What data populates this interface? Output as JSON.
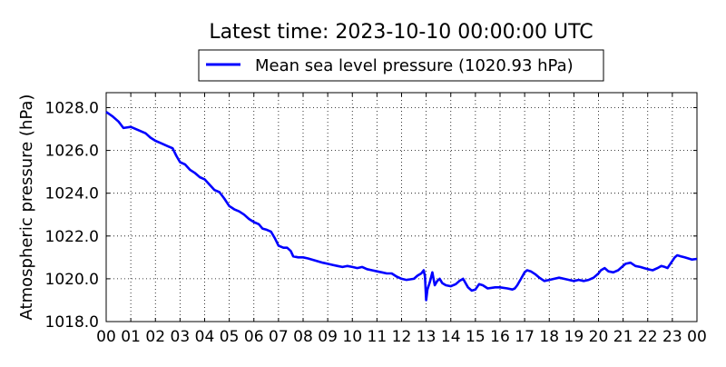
{
  "chart_data": {
    "type": "line",
    "title": "Latest time: 2023-10-10 00:00:00 UTC",
    "xlabel": "",
    "ylabel": "Atmospheric pressure (hPa)",
    "x_tick_labels": [
      "00",
      "01",
      "02",
      "03",
      "04",
      "05",
      "06",
      "07",
      "08",
      "09",
      "10",
      "11",
      "12",
      "13",
      "14",
      "15",
      "16",
      "17",
      "18",
      "19",
      "20",
      "21",
      "22",
      "23",
      "00"
    ],
    "y_tick_labels": [
      "1018.0",
      "1020.0",
      "1022.0",
      "1024.0",
      "1026.0",
      "1028.0"
    ],
    "y_ticks": [
      1018,
      1020,
      1022,
      1024,
      1026,
      1028
    ],
    "xlim": [
      0,
      24
    ],
    "ylim": [
      1018,
      1028.7
    ],
    "grid": true,
    "legend_position": "top-center",
    "series": [
      {
        "name": "Mean sea level pressure (1020.93 hPa)",
        "color": "#0000ff",
        "points": [
          [
            0.0,
            1027.8
          ],
          [
            0.25,
            1027.6
          ],
          [
            0.5,
            1027.35
          ],
          [
            0.7,
            1027.05
          ],
          [
            1.0,
            1027.1
          ],
          [
            1.3,
            1026.95
          ],
          [
            1.6,
            1026.8
          ],
          [
            1.8,
            1026.6
          ],
          [
            2.0,
            1026.45
          ],
          [
            2.2,
            1026.35
          ],
          [
            2.5,
            1026.2
          ],
          [
            2.7,
            1026.1
          ],
          [
            2.85,
            1025.75
          ],
          [
            3.0,
            1025.45
          ],
          [
            3.2,
            1025.35
          ],
          [
            3.4,
            1025.1
          ],
          [
            3.6,
            1024.95
          ],
          [
            3.8,
            1024.75
          ],
          [
            4.0,
            1024.65
          ],
          [
            4.2,
            1024.4
          ],
          [
            4.4,
            1024.15
          ],
          [
            4.6,
            1024.05
          ],
          [
            4.8,
            1023.75
          ],
          [
            5.0,
            1023.4
          ],
          [
            5.2,
            1023.25
          ],
          [
            5.4,
            1023.15
          ],
          [
            5.6,
            1023.0
          ],
          [
            5.8,
            1022.8
          ],
          [
            6.0,
            1022.65
          ],
          [
            6.2,
            1022.55
          ],
          [
            6.35,
            1022.35
          ],
          [
            6.5,
            1022.3
          ],
          [
            6.7,
            1022.2
          ],
          [
            6.85,
            1021.9
          ],
          [
            7.0,
            1021.55
          ],
          [
            7.2,
            1021.45
          ],
          [
            7.35,
            1021.45
          ],
          [
            7.5,
            1021.3
          ],
          [
            7.6,
            1021.05
          ],
          [
            7.8,
            1021.0
          ],
          [
            8.0,
            1021.0
          ],
          [
            8.2,
            1020.95
          ],
          [
            8.5,
            1020.85
          ],
          [
            8.8,
            1020.75
          ],
          [
            9.0,
            1020.7
          ],
          [
            9.2,
            1020.65
          ],
          [
            9.4,
            1020.6
          ],
          [
            9.6,
            1020.55
          ],
          [
            9.8,
            1020.6
          ],
          [
            10.0,
            1020.55
          ],
          [
            10.2,
            1020.5
          ],
          [
            10.4,
            1020.55
          ],
          [
            10.6,
            1020.45
          ],
          [
            10.8,
            1020.4
          ],
          [
            11.0,
            1020.35
          ],
          [
            11.2,
            1020.3
          ],
          [
            11.4,
            1020.25
          ],
          [
            11.6,
            1020.25
          ],
          [
            11.8,
            1020.1
          ],
          [
            12.0,
            1020.0
          ],
          [
            12.2,
            1019.95
          ],
          [
            12.5,
            1020.0
          ],
          [
            12.65,
            1020.15
          ],
          [
            12.8,
            1020.25
          ],
          [
            12.9,
            1020.4
          ],
          [
            12.95,
            1020.1
          ],
          [
            13.0,
            1019.0
          ],
          [
            13.05,
            1019.5
          ],
          [
            13.15,
            1019.85
          ],
          [
            13.25,
            1020.3
          ],
          [
            13.35,
            1019.7
          ],
          [
            13.45,
            1019.9
          ],
          [
            13.55,
            1020.0
          ],
          [
            13.65,
            1019.8
          ],
          [
            13.8,
            1019.7
          ],
          [
            14.0,
            1019.65
          ],
          [
            14.2,
            1019.75
          ],
          [
            14.35,
            1019.9
          ],
          [
            14.5,
            1020.0
          ],
          [
            14.6,
            1019.8
          ],
          [
            14.7,
            1019.6
          ],
          [
            14.85,
            1019.45
          ],
          [
            15.0,
            1019.5
          ],
          [
            15.15,
            1019.75
          ],
          [
            15.3,
            1019.7
          ],
          [
            15.5,
            1019.55
          ],
          [
            15.8,
            1019.6
          ],
          [
            16.0,
            1019.6
          ],
          [
            16.3,
            1019.55
          ],
          [
            16.5,
            1019.5
          ],
          [
            16.6,
            1019.55
          ],
          [
            16.7,
            1019.7
          ],
          [
            16.85,
            1020.0
          ],
          [
            17.0,
            1020.3
          ],
          [
            17.1,
            1020.4
          ],
          [
            17.25,
            1020.35
          ],
          [
            17.45,
            1020.2
          ],
          [
            17.6,
            1020.05
          ],
          [
            17.8,
            1019.9
          ],
          [
            18.0,
            1019.95
          ],
          [
            18.2,
            1020.0
          ],
          [
            18.4,
            1020.05
          ],
          [
            18.6,
            1020.0
          ],
          [
            18.8,
            1019.95
          ],
          [
            19.0,
            1019.9
          ],
          [
            19.2,
            1019.95
          ],
          [
            19.4,
            1019.9
          ],
          [
            19.6,
            1019.95
          ],
          [
            19.8,
            1020.05
          ],
          [
            20.0,
            1020.25
          ],
          [
            20.1,
            1020.4
          ],
          [
            20.25,
            1020.5
          ],
          [
            20.4,
            1020.35
          ],
          [
            20.6,
            1020.3
          ],
          [
            20.8,
            1020.4
          ],
          [
            20.95,
            1020.55
          ],
          [
            21.1,
            1020.7
          ],
          [
            21.3,
            1020.75
          ],
          [
            21.5,
            1020.6
          ],
          [
            21.7,
            1020.55
          ],
          [
            21.85,
            1020.5
          ],
          [
            22.0,
            1020.45
          ],
          [
            22.2,
            1020.4
          ],
          [
            22.4,
            1020.5
          ],
          [
            22.55,
            1020.6
          ],
          [
            22.7,
            1020.55
          ],
          [
            22.8,
            1020.5
          ],
          [
            22.95,
            1020.75
          ],
          [
            23.1,
            1021.0
          ],
          [
            23.2,
            1021.1
          ],
          [
            23.35,
            1021.05
          ],
          [
            23.5,
            1021.0
          ],
          [
            23.65,
            1020.95
          ],
          [
            23.8,
            1020.9
          ],
          [
            24.0,
            1020.93
          ]
        ]
      }
    ]
  }
}
